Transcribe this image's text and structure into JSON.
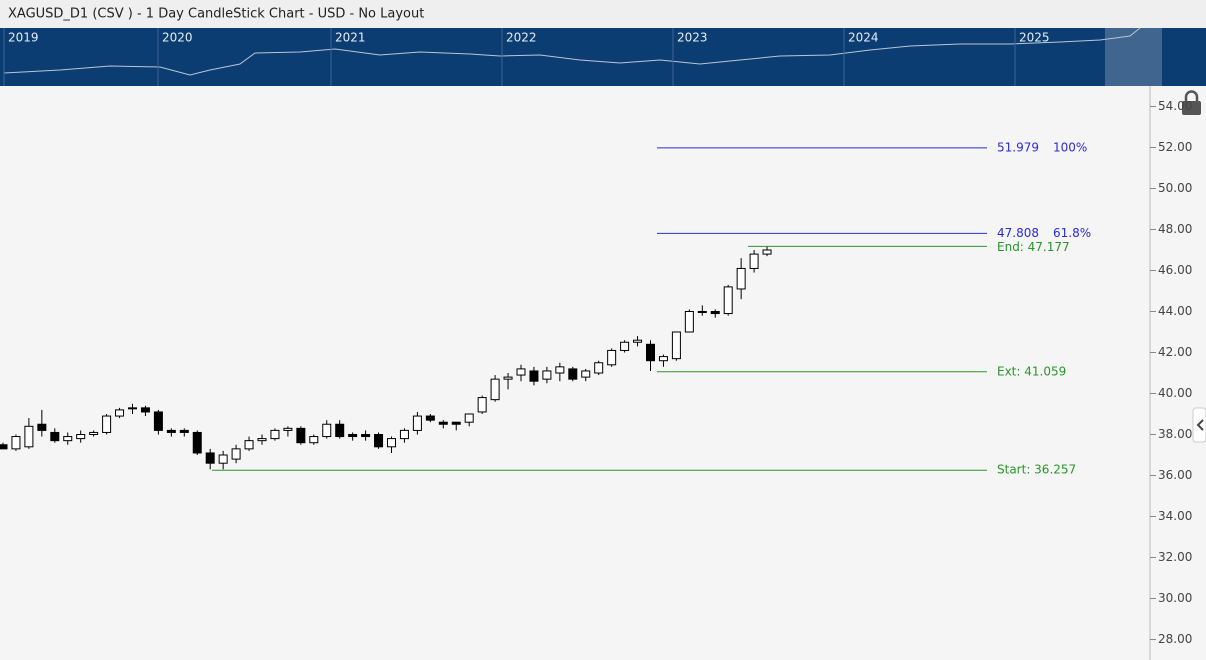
{
  "title": "XAGUSD_D1 (CSV ) - 1 Day CandleStick Chart - USD - No Layout",
  "navigator": {
    "years": [
      "2019",
      "2020",
      "2021",
      "2022",
      "2023",
      "2024",
      "2025"
    ]
  },
  "chart_data": {
    "type": "candlestick",
    "color_up": "#ffffff",
    "color_down": "#000000",
    "ylim": [
      27,
      55
    ],
    "yticks": [
      {
        "value": 28,
        "label": "28.00"
      },
      {
        "value": 30,
        "label": "30.00"
      },
      {
        "value": 32,
        "label": "32.00"
      },
      {
        "value": 34,
        "label": "34.00"
      },
      {
        "value": 36,
        "label": "36.00"
      },
      {
        "value": 38,
        "label": "38.00"
      },
      {
        "value": 40,
        "label": "40.00"
      },
      {
        "value": 42,
        "label": "42.00"
      },
      {
        "value": 44,
        "label": "44.00"
      },
      {
        "value": 46,
        "label": "46.00"
      },
      {
        "value": 48,
        "label": "48.00"
      },
      {
        "value": 50,
        "label": "50.00"
      },
      {
        "value": 52,
        "label": "52.00"
      },
      {
        "value": 54,
        "label": "54.00"
      }
    ],
    "open": [
      37.5,
      37.3,
      37.4,
      38.5,
      38.1,
      37.7,
      37.8,
      38.0,
      38.1,
      38.9,
      39.3,
      39.3,
      39.1,
      38.2,
      38.2,
      38.1,
      37.1,
      36.6,
      36.8,
      37.3,
      37.7,
      37.8,
      38.2,
      38.3,
      37.6,
      37.9,
      38.5,
      38.0,
      38.0,
      38.0,
      37.4,
      37.8,
      38.2,
      38.9,
      38.6,
      38.6,
      38.6,
      39.1,
      39.7,
      40.7,
      40.9,
      41.1,
      40.7,
      41.0,
      41.2,
      40.8,
      41.0,
      41.4,
      42.1,
      42.5,
      42.4,
      41.6,
      41.7,
      43.0,
      44.0,
      44.0,
      43.9,
      45.1,
      46.1,
      46.8
    ],
    "high": [
      37.6,
      38.0,
      38.8,
      39.2,
      38.3,
      38.1,
      38.2,
      38.2,
      39.0,
      39.3,
      39.5,
      39.4,
      39.2,
      38.3,
      38.3,
      38.2,
      37.3,
      37.2,
      37.5,
      37.9,
      38.0,
      38.3,
      38.4,
      38.4,
      38.0,
      38.7,
      38.7,
      38.1,
      38.2,
      38.1,
      37.9,
      38.3,
      39.1,
      39.0,
      38.7,
      38.6,
      39.0,
      39.9,
      40.9,
      41.0,
      41.4,
      41.3,
      41.3,
      41.5,
      41.3,
      41.2,
      41.6,
      42.2,
      42.6,
      42.8,
      42.6,
      41.9,
      43.0,
      44.1,
      44.3,
      44.1,
      45.3,
      46.6,
      47.0,
      47.2
    ],
    "low": [
      37.3,
      37.2,
      37.3,
      37.9,
      37.6,
      37.5,
      37.6,
      37.9,
      38.0,
      38.8,
      39.0,
      38.9,
      38.0,
      37.9,
      37.9,
      37.0,
      36.3,
      36.3,
      36.6,
      37.2,
      37.5,
      37.7,
      37.9,
      37.5,
      37.5,
      37.8,
      37.8,
      37.7,
      37.7,
      37.3,
      37.1,
      37.6,
      38.0,
      38.6,
      38.3,
      38.2,
      38.4,
      39.0,
      39.6,
      40.2,
      40.6,
      40.4,
      40.5,
      40.6,
      40.6,
      40.6,
      40.9,
      41.3,
      42.0,
      42.3,
      41.1,
      41.3,
      41.6,
      43.0,
      43.8,
      43.7,
      43.8,
      44.6,
      45.9,
      46.7
    ],
    "close": [
      37.3,
      37.9,
      38.4,
      38.2,
      37.7,
      37.9,
      38.0,
      38.1,
      38.9,
      39.2,
      39.3,
      39.1,
      38.2,
      38.1,
      38.1,
      37.1,
      36.6,
      37.0,
      37.3,
      37.7,
      37.8,
      38.2,
      38.3,
      37.6,
      37.9,
      38.5,
      37.9,
      37.9,
      37.9,
      37.4,
      37.8,
      38.2,
      38.9,
      38.7,
      38.5,
      38.5,
      39.0,
      39.8,
      40.7,
      40.8,
      41.2,
      40.6,
      41.1,
      41.3,
      40.7,
      41.1,
      41.5,
      42.1,
      42.5,
      42.6,
      41.6,
      41.8,
      43.0,
      44.0,
      44.0,
      43.9,
      45.2,
      46.1,
      46.8,
      47.0
    ],
    "fib_levels": [
      {
        "value": 51.979,
        "level": "100%"
      },
      {
        "value": 47.808,
        "level": "61.8%"
      }
    ],
    "markers": [
      {
        "value": 47.177,
        "label": "End: 47.177"
      },
      {
        "value": 41.059,
        "label": "Ext: 41.059"
      },
      {
        "value": 36.257,
        "label": "Start: 36.257"
      }
    ],
    "fib_color": "#2b2bd6",
    "marker_color": "#2a962a"
  }
}
